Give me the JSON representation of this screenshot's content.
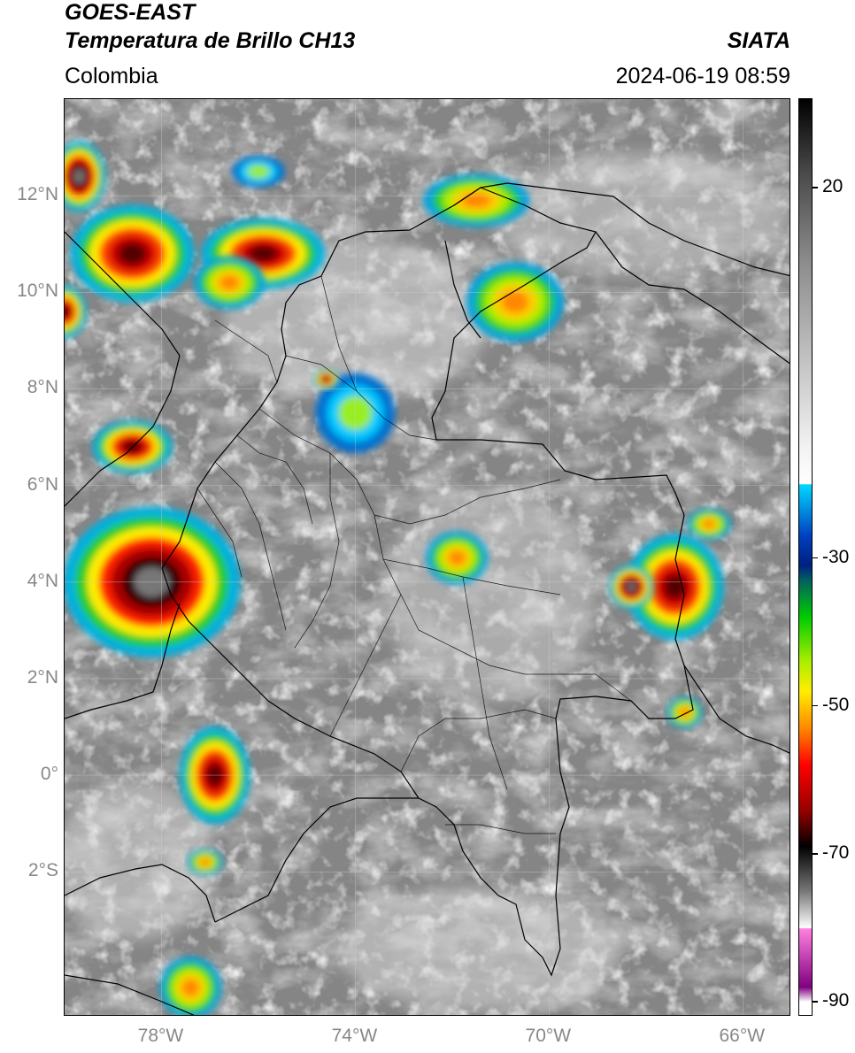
{
  "header": {
    "satellite": "GOES-EAST",
    "product": "Temperatura de Brillo CH13",
    "brand": "SIATA",
    "region": "Colombia",
    "datetime": "2024-06-19 08:59"
  },
  "map": {
    "type": "satellite-ir-map",
    "lon_range": [
      -80,
      -65
    ],
    "lat_range": [
      -5,
      14
    ],
    "lat_ticks": [
      {
        "value": 12,
        "label": "12°N"
      },
      {
        "value": 10,
        "label": "10°N"
      },
      {
        "value": 8,
        "label": "8°N"
      },
      {
        "value": 6,
        "label": "6°N"
      },
      {
        "value": 4,
        "label": "4°N"
      },
      {
        "value": 2,
        "label": "2°N"
      },
      {
        "value": 0,
        "label": "0°"
      },
      {
        "value": -2,
        "label": "2°S"
      }
    ],
    "lon_ticks": [
      {
        "value": -78,
        "label": "78°W"
      },
      {
        "value": -74,
        "label": "74°W"
      },
      {
        "value": -70,
        "label": "70°W"
      },
      {
        "value": -66,
        "label": "66°W"
      }
    ],
    "gridlines": true
  },
  "colorbar": {
    "range": [
      -92,
      32
    ],
    "ticks": [
      {
        "value": 20,
        "label": "20"
      },
      {
        "value": -30,
        "label": "-30"
      },
      {
        "value": -50,
        "label": "-50"
      },
      {
        "value": -70,
        "label": "-70"
      },
      {
        "value": -90,
        "label": "-90"
      }
    ],
    "stops": [
      {
        "value": 32,
        "color": "#000000"
      },
      {
        "value": 22,
        "color": "#4a4a4a"
      },
      {
        "value": 10,
        "color": "#8c8c8c"
      },
      {
        "value": -15,
        "color": "#f2f2f2"
      },
      {
        "value": -20,
        "color": "#ffffff"
      },
      {
        "value": -20.1,
        "color": "#00d8ff"
      },
      {
        "value": -27,
        "color": "#0040c0"
      },
      {
        "value": -31,
        "color": "#002080"
      },
      {
        "value": -33,
        "color": "#006060"
      },
      {
        "value": -38,
        "color": "#00cc00"
      },
      {
        "value": -44,
        "color": "#aaee00"
      },
      {
        "value": -48,
        "color": "#ffee00"
      },
      {
        "value": -53,
        "color": "#ff8800"
      },
      {
        "value": -58,
        "color": "#ff0000"
      },
      {
        "value": -64,
        "color": "#990000"
      },
      {
        "value": -69,
        "color": "#000000"
      },
      {
        "value": -75,
        "color": "#777777"
      },
      {
        "value": -80,
        "color": "#ffffff"
      },
      {
        "value": -80.1,
        "color": "#ff80e0"
      },
      {
        "value": -88,
        "color": "#800080"
      },
      {
        "value": -90,
        "color": "#ffffff"
      },
      {
        "value": -92,
        "color": "#ffffff"
      }
    ]
  }
}
